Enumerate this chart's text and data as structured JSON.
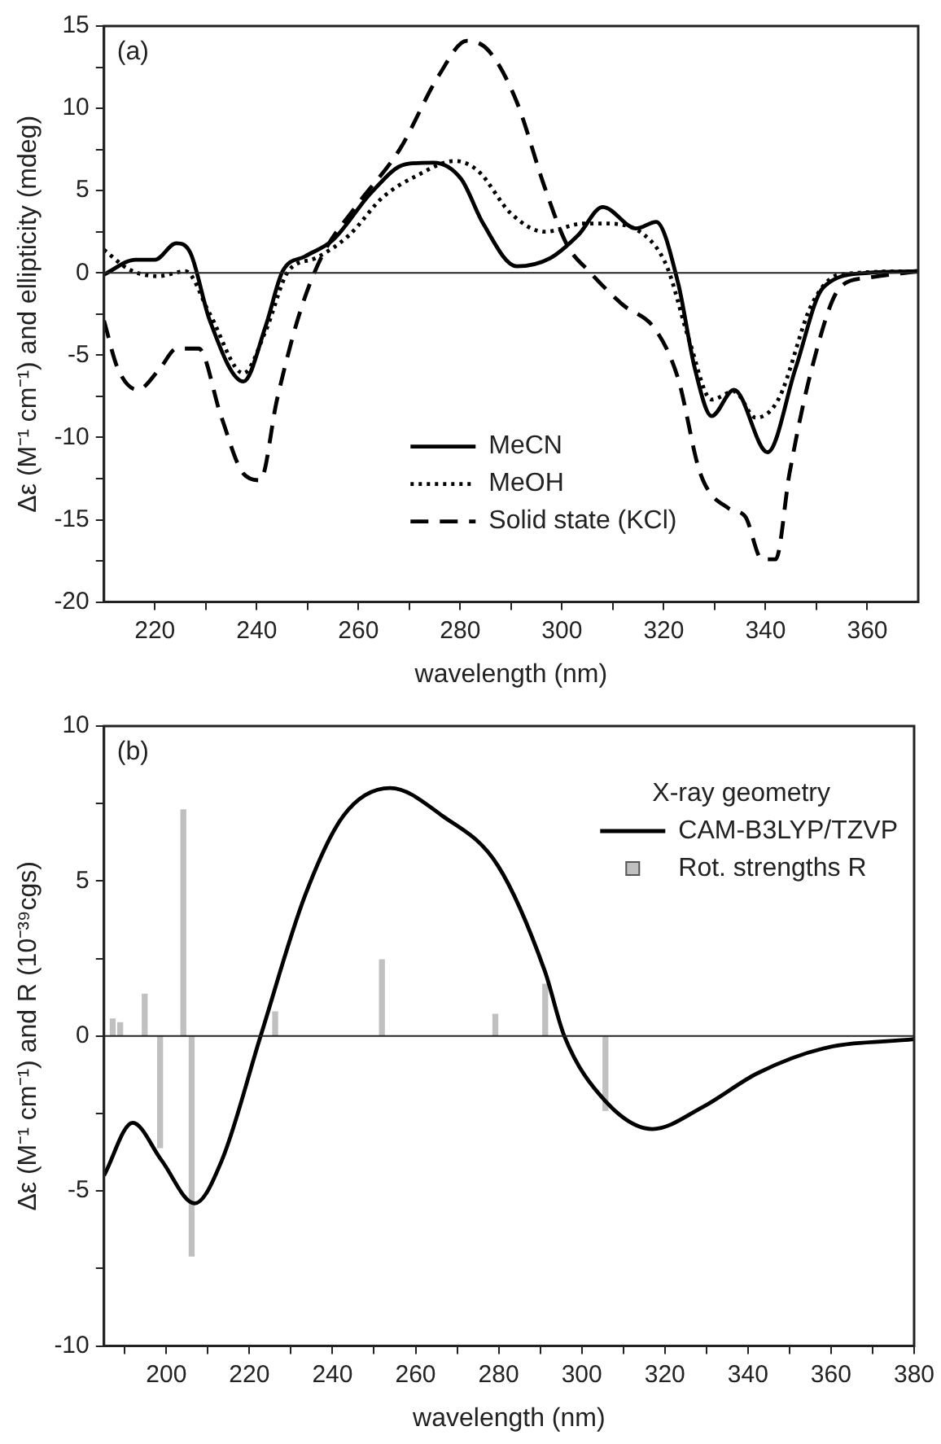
{
  "chart_data": [
    {
      "type": "line",
      "xlabel": "wavelength (nm)",
      "ylabel": "Δε (M⁻¹ cm⁻¹) and ellipticity (mdeg)",
      "annotations": [
        "(a)"
      ],
      "xlim": [
        210,
        370
      ],
      "xticks": [
        220,
        {
          "value": 230,
          "label": null
        },
        240,
        {
          "value": 250,
          "label": null
        },
        260,
        {
          "value": 270,
          "label": null
        },
        280,
        {
          "value": 290,
          "label": null
        },
        300,
        {
          "value": 310,
          "label": null
        },
        320,
        {
          "value": 330,
          "label": null
        },
        340,
        {
          "value": 350,
          "label": null
        },
        360
      ],
      "ylim": [
        -20,
        15
      ],
      "yticks": [
        -20,
        {
          "value": -17.5,
          "label": null
        },
        -15,
        {
          "value": -12.5,
          "label": null
        },
        -10,
        {
          "value": -7.5,
          "label": null
        },
        -5,
        {
          "value": -2.5,
          "label": null
        },
        0,
        {
          "value": 2.5,
          "label": null
        },
        5,
        {
          "value": 7.5,
          "label": null
        },
        10,
        {
          "value": 12.5,
          "label": null
        },
        15
      ],
      "grid": false,
      "legend": "bottom",
      "ref_lines": [
        {
          "axis": "y",
          "value": 0
        }
      ],
      "series": [
        {
          "name": "MeCN",
          "color": "#000000",
          "line_style": "solid",
          "x": [
            210,
            216.2,
            220,
            224.2,
            227,
            230.8,
            237.4,
            241.8,
            245.1,
            249.5,
            255,
            262.6,
            269.2,
            274.7,
            280.2,
            284.5,
            291.1,
            297.7,
            303.2,
            308,
            314.6,
            318.5,
            322.8,
            326.1,
            329.4,
            333.8,
            340.4,
            345.9,
            351.3,
            360.1,
            370
          ],
          "values": [
            -0.1,
            0.8,
            0.8,
            1.8,
            1.2,
            -2.9,
            -6.6,
            -3.2,
            0.1,
            1,
            2,
            4.9,
            6.6,
            6.7,
            5.7,
            3,
            0.4,
            0.9,
            2.3,
            4,
            2.7,
            3.1,
            -0.6,
            -5.8,
            -8.7,
            -7.1,
            -10.9,
            -5.8,
            -0.9,
            0,
            0.1
          ]
        },
        {
          "name": "MeOH",
          "color": "#000000",
          "line_style": "dotted",
          "x": [
            210,
            215,
            220.6,
            226,
            230.8,
            237.4,
            241.8,
            246.2,
            251.6,
            258.2,
            264.8,
            271.4,
            279,
            283.5,
            290,
            296.6,
            304.3,
            308,
            316.2,
            320.6,
            325,
            329.4,
            333.8,
            338.1,
            342.5,
            349.1,
            354.6,
            370
          ],
          "values": [
            1.4,
            0.2,
            -0.2,
            0.1,
            -2.5,
            -6.1,
            -3.5,
            0.1,
            0.9,
            2.3,
            4.6,
            5.9,
            6.8,
            6.2,
            3.6,
            2.5,
            3,
            3,
            2.3,
            0.4,
            -4.1,
            -7.7,
            -7.2,
            -8.8,
            -7.7,
            -1.9,
            -0.1,
            0.1
          ]
        },
        {
          "name": "Solid state (KCl)",
          "color": "#000000",
          "line_style": "dashed",
          "x": [
            210,
            212.7,
            216.6,
            221,
            224.3,
            228.6,
            233,
            237.4,
            240.7,
            244,
            248.4,
            252.8,
            259.4,
            268.1,
            275.8,
            281.3,
            285.6,
            291.1,
            296.6,
            301,
            305.3,
            311.8,
            318.5,
            322.8,
            327.2,
            332.7,
            336,
            339.3,
            342,
            344.7,
            349.1,
            354.6,
            360,
            370
          ],
          "values": [
            -2.9,
            -5.8,
            -7.1,
            -5.8,
            -4.6,
            -4.6,
            -8.7,
            -12.2,
            -12.6,
            -7.7,
            -2.5,
            1,
            4,
            7.5,
            12,
            14.1,
            13.5,
            10.4,
            5.2,
            1.7,
            0.1,
            -1.9,
            -3.5,
            -6.4,
            -12.2,
            -14.3,
            -14.8,
            -17.4,
            -17.4,
            -12.2,
            -5.8,
            -0.9,
            -0.3,
            0.1
          ]
        }
      ]
    },
    {
      "type": "line",
      "xlabel": "wavelength (nm)",
      "ylabel": "Δε (M⁻¹ cm⁻¹) and R (10⁻³⁹cgs)",
      "annotations": [
        "(b)"
      ],
      "legend_title": "X-ray geometry",
      "xlim": [
        185,
        380
      ],
      "xticks": [
        {
          "value": 190,
          "label": null
        },
        200,
        {
          "value": 210,
          "label": null
        },
        220,
        {
          "value": 230,
          "label": null
        },
        240,
        {
          "value": 250,
          "label": null
        },
        260,
        {
          "value": 270,
          "label": null
        },
        280,
        {
          "value": 290,
          "label": null
        },
        300,
        {
          "value": 310,
          "label": null
        },
        320,
        {
          "value": 330,
          "label": null
        },
        340,
        {
          "value": 350,
          "label": null
        },
        360,
        {
          "value": 370,
          "label": null
        },
        380
      ],
      "ylim": [
        -10,
        10
      ],
      "yticks": [
        -10,
        {
          "value": -7.5,
          "label": null
        },
        -5,
        {
          "value": -2.5,
          "label": null
        },
        0,
        {
          "value": 2.5,
          "label": null
        },
        5,
        {
          "value": 7.5,
          "label": null
        },
        10
      ],
      "grid": false,
      "legend": "top right",
      "ref_lines": [
        {
          "axis": "y",
          "value": 0
        }
      ],
      "series": [
        {
          "name": "CAM-B3LYP/TZVP",
          "color": "#000000",
          "line_style": "solid",
          "x": [
            185,
            191.9,
            198.8,
            206.8,
            213.4,
            222.7,
            233.3,
            242.6,
            253.9,
            266.5,
            279.8,
            291.1,
            295.8,
            305.7,
            317,
            329,
            342.3,
            358.2,
            380
          ],
          "values": [
            -4.5,
            -2.8,
            -4,
            -5.4,
            -4,
            0,
            4.5,
            7.1,
            8,
            7.1,
            5.5,
            2.1,
            0,
            -2.1,
            -3,
            -2.3,
            -1.2,
            -0.4,
            -0.1
          ]
        },
        {
          "name": "Rot. strengths R",
          "type": "bar",
          "color": "#c0c0c0",
          "x": [
            187.1,
            188.9,
            194.8,
            198.5,
            204.1,
            206.1,
            226.2,
            251.9,
            279.2,
            291.2,
            305.7
          ],
          "values": [
            0.55,
            0.43,
            1.35,
            -3.6,
            7.3,
            -7.1,
            0.78,
            2.46,
            0.7,
            1.67,
            -2.4
          ]
        }
      ]
    }
  ]
}
